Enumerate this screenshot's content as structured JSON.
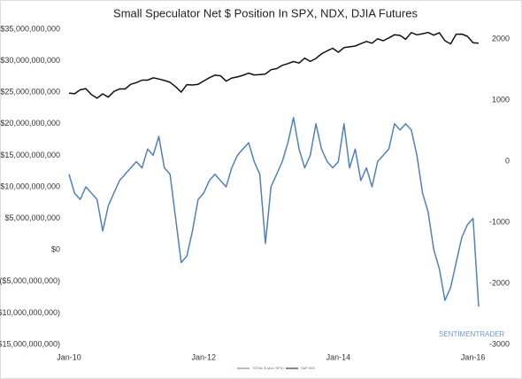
{
  "chart_data": {
    "type": "line",
    "title": "Small Speculator Net $ Position In SPX, NDX, DJIA Futures",
    "annotation": "SENTIMENTRADER",
    "categories": [
      "Jan-10",
      null,
      null,
      null,
      null,
      null,
      null,
      null,
      null,
      null,
      null,
      null,
      null,
      null,
      null,
      null,
      null,
      null,
      null,
      null,
      null,
      null,
      null,
      null,
      "Jan-12",
      null,
      null,
      null,
      null,
      null,
      null,
      null,
      null,
      null,
      null,
      null,
      null,
      null,
      null,
      null,
      null,
      null,
      null,
      null,
      null,
      null,
      null,
      null,
      "Jan-14",
      null,
      null,
      null,
      null,
      null,
      null,
      null,
      null,
      null,
      null,
      null,
      null,
      null,
      null,
      null,
      null,
      null,
      null,
      null,
      null,
      null,
      null,
      null,
      "Jan-16",
      null
    ],
    "series": [
      {
        "name": "TOTAL $ (ALL SPX)",
        "color": "#4f81bd",
        "axis": "y",
        "values": [
          12000000000,
          9000000000,
          8000000000,
          10000000000,
          9000000000,
          8000000000,
          3000000000,
          7000000000,
          9000000000,
          11000000000,
          12000000000,
          13000000000,
          14000000000,
          13000000000,
          16000000000,
          15000000000,
          18000000000,
          13000000000,
          12000000000,
          5000000000,
          -2000000000,
          -1000000000,
          3000000000,
          8000000000,
          9000000000,
          11000000000,
          12000000000,
          11000000000,
          10000000000,
          13000000000,
          15000000000,
          16000000000,
          17000000000,
          14000000000,
          12000000000,
          1000000000,
          10000000000,
          12000000000,
          14000000000,
          17000000000,
          21000000000,
          16000000000,
          13000000000,
          15000000000,
          20000000000,
          16000000000,
          14000000000,
          13000000000,
          14000000000,
          20000000000,
          13000000000,
          16000000000,
          11000000000,
          13000000000,
          10000000000,
          14000000000,
          15000000000,
          16000000000,
          20000000000,
          19000000000,
          20000000000,
          19000000000,
          15000000000,
          9000000000,
          6000000000,
          0,
          -3000000000,
          -8000000000,
          -6000000000,
          -2000000000,
          2000000000,
          4000000000,
          5000000000,
          -9000000000
        ]
      },
      {
        "name": "S&P 500",
        "color": "#111111",
        "axis": "y2",
        "values": [
          1115,
          1104,
          1169,
          1187,
          1089,
          1031,
          1102,
          1049,
          1141,
          1183,
          1181,
          1258,
          1286,
          1327,
          1326,
          1364,
          1345,
          1321,
          1292,
          1219,
          1131,
          1253,
          1247,
          1258,
          1312,
          1366,
          1408,
          1398,
          1310,
          1362,
          1379,
          1406,
          1441,
          1412,
          1416,
          1426,
          1498,
          1515,
          1569,
          1598,
          1631,
          1606,
          1686,
          1633,
          1682,
          1757,
          1806,
          1848,
          1783,
          1859,
          1872,
          1884,
          1924,
          1960,
          1931,
          2003,
          1972,
          2018,
          2068,
          2059,
          1995,
          2105,
          2068,
          2086,
          2107,
          2063,
          2104,
          1972,
          1920,
          2079,
          2080,
          2044,
          1940,
          1932
        ]
      }
    ],
    "ylim": [
      -15000000000,
      35000000000
    ],
    "yticks": [
      {
        "value": -15000000000,
        "label": "($15,000,000,000)"
      },
      {
        "value": -10000000000,
        "label": "($10,000,000,000)"
      },
      {
        "value": -5000000000,
        "label": "($5,000,000,000)"
      },
      {
        "value": 0,
        "label": "$0"
      },
      {
        "value": 5000000000,
        "label": "$5,000,000,000"
      },
      {
        "value": 10000000000,
        "label": "$10,000,000,000"
      },
      {
        "value": 15000000000,
        "label": "$15,000,000,000"
      },
      {
        "value": 20000000000,
        "label": "$20,000,000,000"
      },
      {
        "value": 25000000000,
        "label": "$25,000,000,000"
      },
      {
        "value": 30000000000,
        "label": "$30,000,000,000"
      },
      {
        "value": 35000000000,
        "label": "$35,000,000,000"
      }
    ],
    "y2lim": [
      -3000,
      2160
    ],
    "y2ticks": [
      -3000,
      -2000,
      -1000,
      0,
      1000,
      2000
    ],
    "grid": false,
    "legend": "bottom"
  }
}
